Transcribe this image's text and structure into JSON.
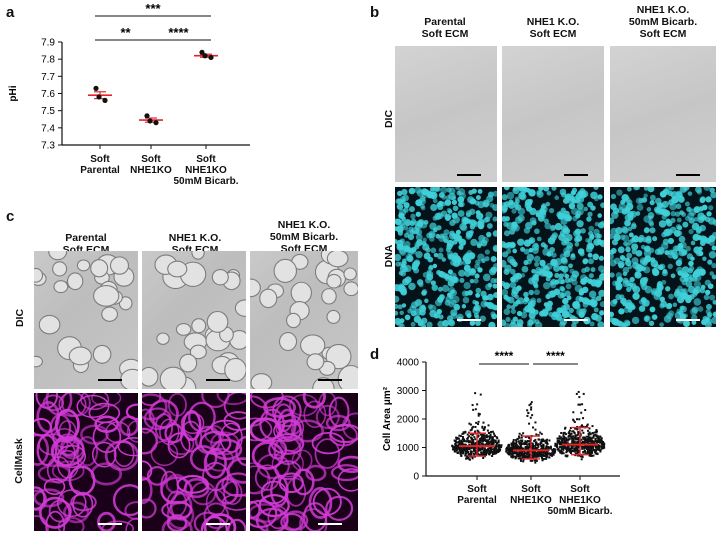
{
  "panel_letters": {
    "a": "a",
    "b": "b",
    "c": "c",
    "d": "d"
  },
  "colors": {
    "red": "#e0262b",
    "cyan": "#3fd0d8",
    "magenta": "#d23ad6",
    "black": "#111111"
  },
  "panel_b": {
    "columns": [
      "Parental\nSoft ECM",
      "NHE1 K.O.\nSoft ECM",
      "NHE1 K.O.\n50mM Bicarb.\nSoft ECM"
    ],
    "rows": [
      "DIC",
      "DNA"
    ]
  },
  "panel_c": {
    "columns": [
      "Parental\nSoft ECM",
      "NHE1 K.O.\nSoft ECM",
      "NHE1 K.O.\n50mM Bicarb.\nSoft ECM"
    ],
    "rows": [
      "DIC",
      "CellMask"
    ]
  },
  "chart_data": [
    {
      "type": "scatter",
      "panel": "a",
      "ylabel": "pHi",
      "ylim": [
        7.3,
        7.9
      ],
      "yticks": [
        "7.3",
        "7.4",
        "7.5",
        "7.6",
        "7.7",
        "7.8",
        "7.9"
      ],
      "categories": [
        "Soft\nParental",
        "Soft\nNHE1KO",
        "Soft\nNHE1KO\n50mM Bicarb."
      ],
      "points": [
        [
          7.63,
          7.56,
          7.58
        ],
        [
          7.47,
          7.43,
          7.44
        ],
        [
          7.84,
          7.81,
          7.82
        ]
      ],
      "means": [
        7.59,
        7.445,
        7.82
      ],
      "sem": [
        0.02,
        0.012,
        0.009
      ],
      "significance": [
        {
          "from": 0,
          "to": 2,
          "label": "***"
        },
        {
          "from": 0,
          "to": 1,
          "label": "**"
        },
        {
          "from": 1,
          "to": 2,
          "label": "****"
        }
      ]
    },
    {
      "type": "scatter",
      "panel": "d",
      "ylabel": "Cell Area μm²",
      "ylim": [
        0,
        4000
      ],
      "yticks": [
        "0",
        "1000",
        "2000",
        "3000",
        "4000"
      ],
      "categories": [
        "Soft\nParental",
        "Soft\nNHE1KO",
        "Soft\nNHE1KO\n50mM Bicarb."
      ],
      "medians": [
        1050,
        900,
        1100
      ],
      "q1": [
        700,
        600,
        750
      ],
      "q3": [
        1500,
        1400,
        1700
      ],
      "significance": [
        {
          "from": 0,
          "to": 1,
          "label": "****"
        },
        {
          "from": 1,
          "to": 2,
          "label": "****"
        }
      ]
    }
  ]
}
